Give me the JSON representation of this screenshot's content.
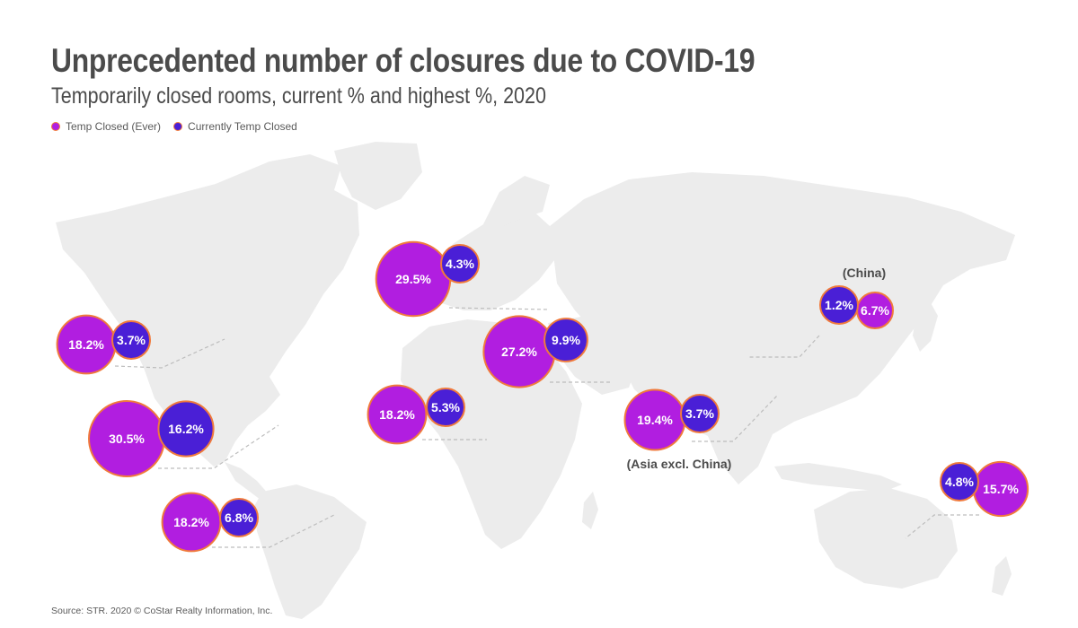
{
  "header": {
    "title": "Unprecedented number of closures due to COVID-19",
    "subtitle": "Temporarily closed rooms, current % and highest %, 2020"
  },
  "legend": {
    "items": [
      {
        "label": "Temp Closed (Ever)",
        "color": "#b11ee0"
      },
      {
        "label": "Currently Temp Closed",
        "color": "#4a1fd6"
      }
    ]
  },
  "colors": {
    "ever": "#b11ee0",
    "current": "#4a1fd6",
    "outline": "#f07a3c",
    "land": "#ececec"
  },
  "chart_data": {
    "type": "bubble-map",
    "title": "Unprecedented number of closures due to COVID-19",
    "subtitle": "Temporarily closed rooms, current % and highest %, 2020",
    "series_names": [
      "Temp Closed (Ever)",
      "Currently Temp Closed"
    ],
    "regions": [
      {
        "label": "",
        "ever": "18.2%",
        "current": "3.7%",
        "ever_value": 18.2,
        "current_value": 3.7
      },
      {
        "label": "",
        "ever": "30.5%",
        "current": "16.2%",
        "ever_value": 30.5,
        "current_value": 16.2
      },
      {
        "label": "",
        "ever": "18.2%",
        "current": "6.8%",
        "ever_value": 18.2,
        "current_value": 6.8
      },
      {
        "label": "",
        "ever": "29.5%",
        "current": "4.3%",
        "ever_value": 29.5,
        "current_value": 4.3
      },
      {
        "label": "",
        "ever": "27.2%",
        "current": "9.9%",
        "ever_value": 27.2,
        "current_value": 9.9
      },
      {
        "label": "",
        "ever": "18.2%",
        "current": "5.3%",
        "ever_value": 18.2,
        "current_value": 5.3
      },
      {
        "label": "(Asia excl. China)",
        "ever": "19.4%",
        "current": "3.7%",
        "ever_value": 19.4,
        "current_value": 3.7
      },
      {
        "label": "(China)",
        "ever": "6.7%",
        "current": "1.2%",
        "ever_value": 6.7,
        "current_value": 1.2
      },
      {
        "label": "",
        "ever": "15.7%",
        "current": "4.8%",
        "ever_value": 15.7,
        "current_value": 4.8
      }
    ]
  },
  "footer": {
    "source": "Source: STR. 2020 © CoStar Realty Information, Inc."
  }
}
